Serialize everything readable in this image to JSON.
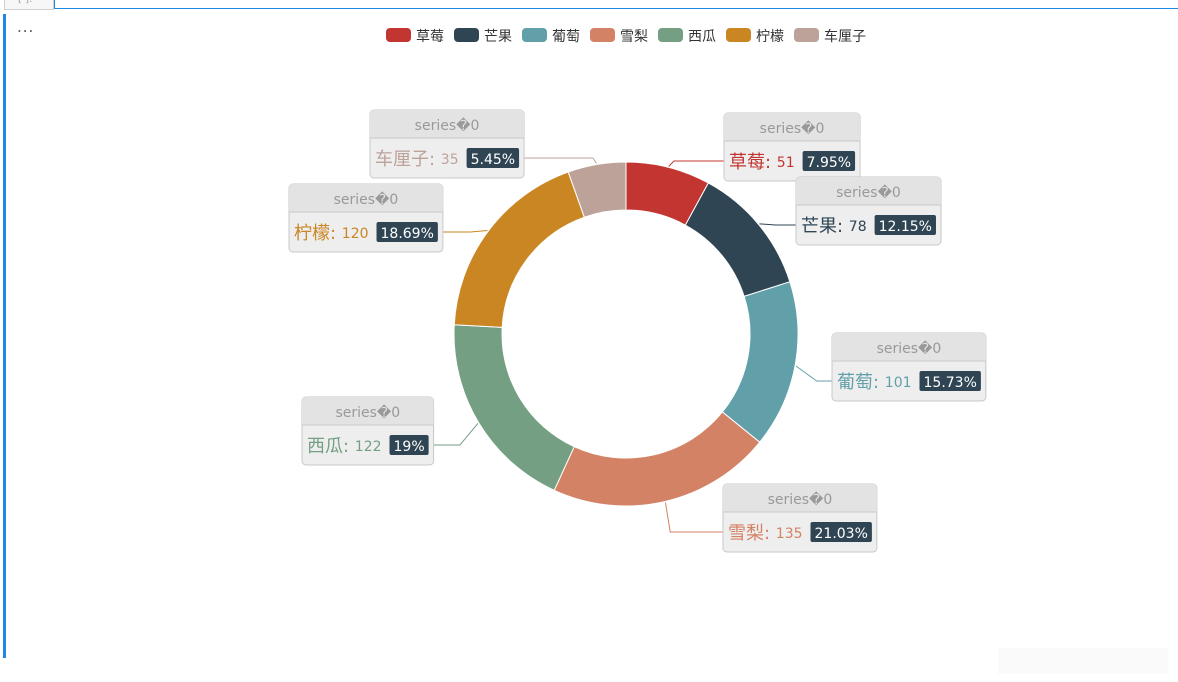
{
  "cell": {
    "prompt": "[ ]:",
    "output_marker": "..."
  },
  "colors": {
    "series": [
      "#c23531",
      "#2f4554",
      "#61a0a8",
      "#d48265",
      "#749f83",
      "#ca8622",
      "#bda29a"
    ],
    "badge_bg": "#2f4554",
    "badge_text": "#ffffff",
    "label_header_bg": "#e3e3e3",
    "label_border": "#c8c8c8",
    "label_header_text": "#999999",
    "notebook_accent": "#1e88e5"
  },
  "chart_data": {
    "type": "pie",
    "variant": "donut",
    "series_name": "series�0",
    "legend_position": "top-center",
    "categories": [
      "草莓",
      "芒果",
      "葡萄",
      "雪梨",
      "西瓜",
      "柠檬",
      "车厘子"
    ],
    "values": [
      51,
      78,
      101,
      135,
      122,
      120,
      35
    ],
    "percent_labels": [
      "7.95%",
      "12.15%",
      "15.73%",
      "21.03%",
      "19%",
      "18.69%",
      "5.45%"
    ],
    "label_separator": ":"
  }
}
